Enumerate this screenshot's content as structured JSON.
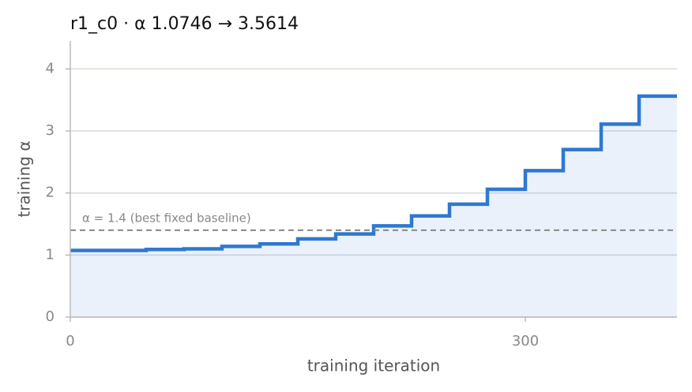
{
  "chart_data": {
    "type": "step",
    "title": "r1_c0   ·   α 1.0746 → 3.5614",
    "x_label": "training iteration",
    "y_label": "training α",
    "x": [
      0,
      50,
      75,
      100,
      125,
      150,
      175,
      200,
      225,
      250,
      275,
      300,
      325,
      350,
      375
    ],
    "series": [
      {
        "color": "#2f78d1",
        "values": [
          1.0746,
          1.09,
          1.1,
          1.14,
          1.18,
          1.26,
          1.34,
          1.47,
          1.63,
          1.82,
          2.06,
          2.36,
          2.7,
          3.11,
          3.5614
        ]
      }
    ],
    "reference_line": {
      "value": 1.4,
      "label": "α = 1.4 (best fixed baseline)",
      "color": "#888888"
    },
    "xlim": [
      0,
      400
    ],
    "ylim": [
      0,
      4.45
    ],
    "xticks": [
      0,
      300
    ],
    "yticks": [
      0,
      1,
      2,
      3,
      4
    ],
    "grid": true
  }
}
